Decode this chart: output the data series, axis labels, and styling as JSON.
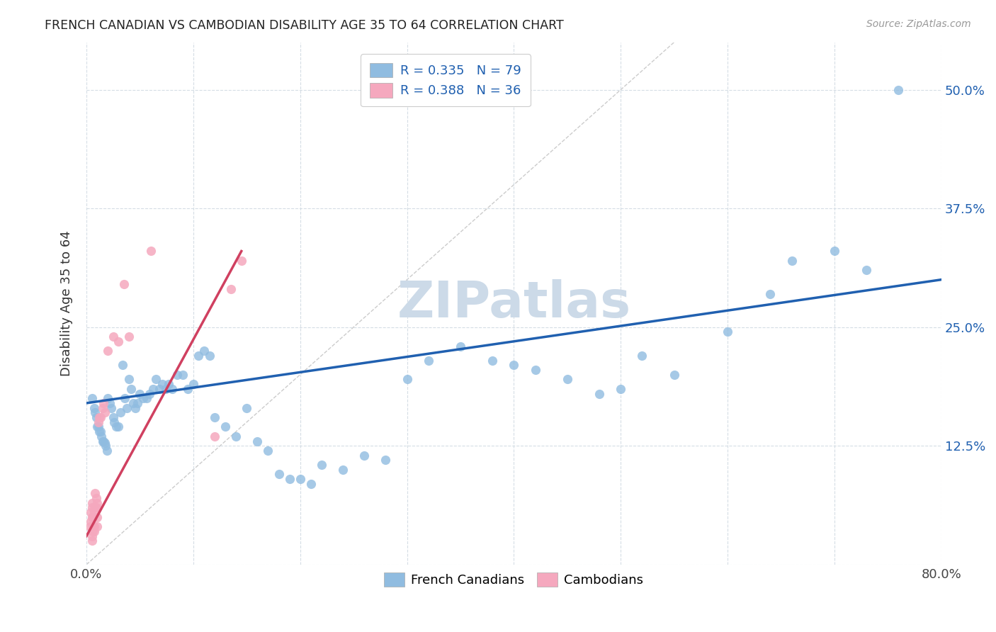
{
  "title": "FRENCH CANADIAN VS CAMBODIAN DISABILITY AGE 35 TO 64 CORRELATION CHART",
  "source": "Source: ZipAtlas.com",
  "ylabel": "Disability Age 35 to 64",
  "y_ticks": [
    0.0,
    0.125,
    0.25,
    0.375,
    0.5
  ],
  "y_tick_labels_right": [
    "",
    "12.5%",
    "25.0%",
    "37.5%",
    "50.0%"
  ],
  "x_ticks": [
    0.0,
    0.1,
    0.2,
    0.3,
    0.4,
    0.5,
    0.6,
    0.7,
    0.8
  ],
  "xlim": [
    0.0,
    0.8
  ],
  "ylim": [
    0.0,
    0.55
  ],
  "blue_color": "#90bce0",
  "pink_color": "#f5a8be",
  "blue_line_color": "#2060b0",
  "pink_line_color": "#d04060",
  "diag_line_color": "#cccccc",
  "watermark": "ZIPatlas",
  "watermark_color": "#ccdae8",
  "fc_x": [
    0.005,
    0.007,
    0.008,
    0.009,
    0.01,
    0.011,
    0.012,
    0.013,
    0.014,
    0.015,
    0.016,
    0.017,
    0.018,
    0.019,
    0.02,
    0.022,
    0.023,
    0.025,
    0.026,
    0.028,
    0.03,
    0.032,
    0.034,
    0.036,
    0.038,
    0.04,
    0.042,
    0.044,
    0.046,
    0.048,
    0.05,
    0.053,
    0.056,
    0.059,
    0.062,
    0.065,
    0.068,
    0.071,
    0.074,
    0.077,
    0.08,
    0.085,
    0.09,
    0.095,
    0.1,
    0.105,
    0.11,
    0.115,
    0.12,
    0.13,
    0.14,
    0.15,
    0.16,
    0.17,
    0.18,
    0.19,
    0.2,
    0.21,
    0.22,
    0.24,
    0.26,
    0.28,
    0.3,
    0.32,
    0.35,
    0.38,
    0.4,
    0.42,
    0.45,
    0.48,
    0.5,
    0.52,
    0.55,
    0.6,
    0.64,
    0.66,
    0.7,
    0.73,
    0.76
  ],
  "fc_y": [
    0.175,
    0.165,
    0.16,
    0.155,
    0.145,
    0.145,
    0.14,
    0.14,
    0.135,
    0.13,
    0.13,
    0.128,
    0.125,
    0.12,
    0.175,
    0.17,
    0.165,
    0.155,
    0.15,
    0.145,
    0.145,
    0.16,
    0.21,
    0.175,
    0.165,
    0.195,
    0.185,
    0.17,
    0.165,
    0.17,
    0.18,
    0.175,
    0.175,
    0.18,
    0.185,
    0.195,
    0.185,
    0.19,
    0.185,
    0.19,
    0.185,
    0.2,
    0.2,
    0.185,
    0.19,
    0.22,
    0.225,
    0.22,
    0.155,
    0.145,
    0.135,
    0.165,
    0.13,
    0.12,
    0.095,
    0.09,
    0.09,
    0.085,
    0.105,
    0.1,
    0.115,
    0.11,
    0.195,
    0.215,
    0.23,
    0.215,
    0.21,
    0.205,
    0.195,
    0.18,
    0.185,
    0.22,
    0.2,
    0.245,
    0.285,
    0.32,
    0.33,
    0.31,
    0.5
  ],
  "cam_x": [
    0.003,
    0.004,
    0.004,
    0.005,
    0.005,
    0.005,
    0.005,
    0.005,
    0.006,
    0.006,
    0.006,
    0.007,
    0.007,
    0.007,
    0.008,
    0.008,
    0.009,
    0.009,
    0.01,
    0.01,
    0.01,
    0.011,
    0.012,
    0.013,
    0.015,
    0.016,
    0.017,
    0.02,
    0.025,
    0.03,
    0.035,
    0.04,
    0.06,
    0.12,
    0.135,
    0.145
  ],
  "cam_y": [
    0.04,
    0.045,
    0.055,
    0.05,
    0.06,
    0.065,
    0.03,
    0.025,
    0.035,
    0.04,
    0.05,
    0.055,
    0.04,
    0.035,
    0.06,
    0.075,
    0.07,
    0.06,
    0.065,
    0.05,
    0.04,
    0.15,
    0.155,
    0.155,
    0.165,
    0.17,
    0.16,
    0.225,
    0.24,
    0.235,
    0.295,
    0.24,
    0.33,
    0.135,
    0.29,
    0.32
  ],
  "fc_line_x0": 0.0,
  "fc_line_x1": 0.8,
  "fc_line_y0": 0.17,
  "fc_line_y1": 0.3,
  "cam_line_x0": 0.0,
  "cam_line_x1": 0.145,
  "cam_line_y0": 0.03,
  "cam_line_y1": 0.33
}
